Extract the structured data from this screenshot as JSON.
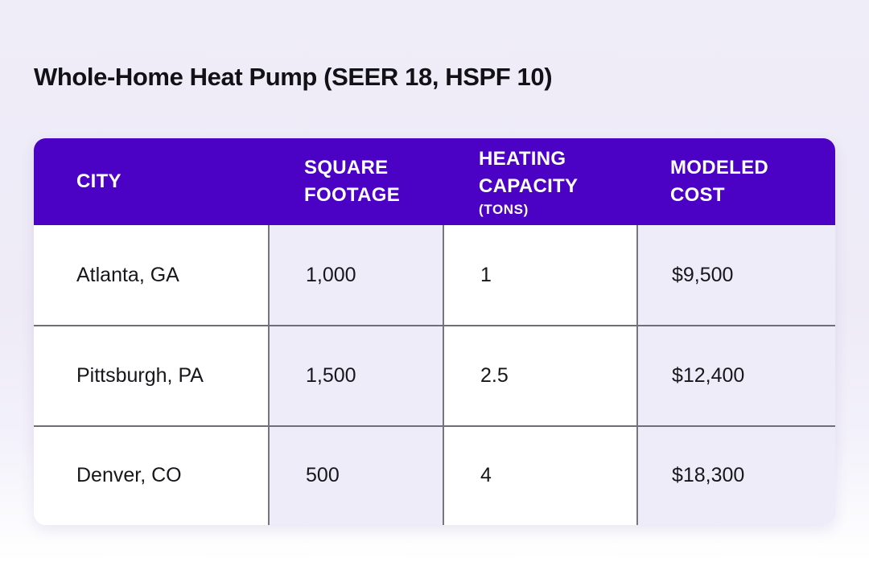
{
  "page": {
    "title": "Whole-Home Heat Pump (SEER 18, HSPF 10)"
  },
  "table": {
    "columns": [
      {
        "label": "CITY",
        "sub": ""
      },
      {
        "label": "SQUARE FOOTAGE",
        "sub": ""
      },
      {
        "label": "HEATING CAPACITY",
        "sub": "(TONS)"
      },
      {
        "label": "MODELED COST",
        "sub": ""
      }
    ],
    "rows": [
      {
        "city": "Atlanta, GA",
        "square_footage": "1,000",
        "heating_capacity_tons": "1",
        "modeled_cost": "$9,500"
      },
      {
        "city": "Pittsburgh, PA",
        "square_footage": "1,500",
        "heating_capacity_tons": "2.5",
        "modeled_cost": "$12,400"
      },
      {
        "city": "Denver, CO",
        "square_footage": "500",
        "heating_capacity_tons": "4",
        "modeled_cost": "$18,300"
      }
    ]
  },
  "chart_data": {
    "type": "table",
    "title": "Whole-Home Heat Pump (SEER 18, HSPF 10)",
    "columns": [
      "CITY",
      "SQUARE FOOTAGE",
      "HEATING CAPACITY (TONS)",
      "MODELED COST"
    ],
    "rows": [
      [
        "Atlanta, GA",
        "1,000",
        "1",
        "$9,500"
      ],
      [
        "Pittsburgh, PA",
        "1,500",
        "2.5",
        "$12,400"
      ],
      [
        "Denver, CO",
        "500",
        "4",
        "$18,300"
      ]
    ]
  },
  "colors": {
    "header_bg": "#4C02C5",
    "header_text": "#FFFFFF",
    "cell_bg_white": "#FFFFFF",
    "cell_bg_lavender": "#EFECF9",
    "page_bg_top": "#EFEDF8",
    "page_bg_bottom": "#FFFFFF",
    "body_text": "#17171B",
    "divider_vertical": "#777582",
    "divider_horizontal": "#6F6D79"
  }
}
